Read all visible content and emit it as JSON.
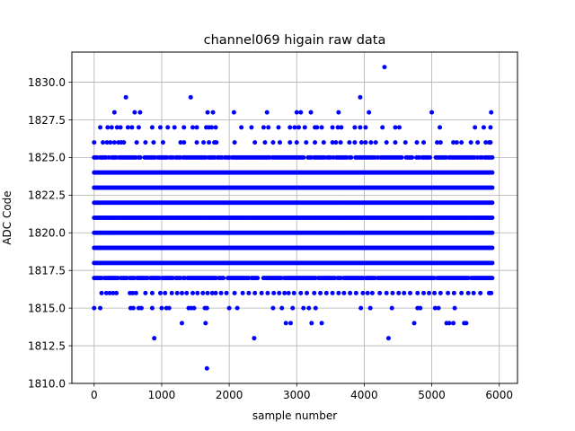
{
  "chart_data": {
    "type": "scatter",
    "title": "channel069 higain raw data",
    "xlabel": "sample number",
    "ylabel": "ADC Code",
    "xlim": [
      -330,
      6270
    ],
    "ylim": [
      1810.0,
      1832.0
    ],
    "x_ticks": [
      0,
      1000,
      2000,
      3000,
      4000,
      5000,
      6000
    ],
    "y_ticks": [
      1810.0,
      1812.5,
      1815.0,
      1817.5,
      1820.0,
      1822.5,
      1825.0,
      1827.5,
      1830.0
    ],
    "x_tick_labels": [
      "0",
      "1000",
      "2000",
      "3000",
      "4000",
      "5000",
      "6000"
    ],
    "y_tick_labels": [
      "1810.0",
      "1812.5",
      "1815.0",
      "1817.5",
      "1820.0",
      "1822.5",
      "1825.0",
      "1827.5",
      "1830.0"
    ],
    "grid": true,
    "marker_color": "#0000ff",
    "sample_range": [
      0,
      5900
    ],
    "dense_levels": [
      1818,
      1819,
      1820,
      1821,
      1822,
      1823,
      1824
    ],
    "medium_levels": [
      1817,
      1825
    ],
    "sparse_levels": [
      {
        "y": 1816,
        "x": [
          110,
          180,
          230,
          280,
          330,
          530,
          570,
          620,
          760,
          860,
          980,
          1050,
          1150,
          1230,
          1300,
          1370,
          1460,
          1530,
          1610,
          1680,
          1750,
          1800,
          1880,
          1960,
          2080,
          2200,
          2290,
          2380,
          2480,
          2570,
          2660,
          2740,
          2820,
          2880,
          2960,
          3060,
          3150,
          3260,
          3350,
          3440,
          3530,
          3620,
          3700,
          3790,
          3880,
          3980,
          4050,
          4120,
          4230,
          4330,
          4420,
          4510,
          4590,
          4680,
          4790,
          4880,
          4960,
          5040,
          5130,
          5240,
          5330,
          5440,
          5540,
          5620,
          5720,
          5850,
          5880
        ]
      },
      {
        "y": 1826,
        "x": [
          0,
          130,
          190,
          240,
          300,
          360,
          400,
          440,
          630,
          760,
          880,
          1020,
          1280,
          1330,
          1520,
          1620,
          1700,
          1780,
          1810,
          2080,
          2380,
          2530,
          2650,
          2750,
          2900,
          3000,
          3140,
          3270,
          3400,
          3530,
          3580,
          3650,
          3780,
          3860,
          3960,
          4020,
          4100,
          4170,
          4330,
          4460,
          4610,
          4780,
          4880,
          5080,
          5130,
          5320,
          5370,
          5440,
          5580,
          5680,
          5800,
          5850,
          5870
        ]
      },
      {
        "y": 1827,
        "x": [
          90,
          200,
          260,
          340,
          390,
          500,
          560,
          660,
          860,
          980,
          1090,
          1190,
          1330,
          1460,
          1520,
          1660,
          1700,
          1740,
          1800,
          2180,
          2330,
          2510,
          2580,
          2730,
          2900,
          2970,
          3030,
          3120,
          3270,
          3300,
          3370,
          3530,
          3610,
          3660,
          3860,
          3940,
          4020,
          4270,
          4460,
          4520,
          5120,
          5640,
          5770,
          5870
        ]
      },
      {
        "y": 1815,
        "x": [
          0,
          90,
          540,
          580,
          660,
          700,
          860,
          1000,
          1070,
          1110,
          1400,
          1440,
          1480,
          1640,
          1670,
          2000,
          2120,
          2650,
          2780,
          2940,
          3100,
          3180,
          3280,
          3950,
          4090,
          4410,
          4790,
          4830,
          5050,
          5100,
          5340
        ]
      },
      {
        "y": 1814,
        "x": [
          1300,
          1650,
          2840,
          2910,
          3220,
          3370,
          4740,
          5220,
          5260,
          5320,
          5480,
          5510
        ]
      },
      {
        "y": 1828,
        "x": [
          300,
          600,
          680,
          1680,
          1760,
          2070,
          2560,
          3000,
          3060,
          3210,
          3620,
          4070,
          5000,
          5880
        ]
      },
      {
        "y": 1829,
        "x": [
          470,
          1430,
          3940
        ]
      },
      {
        "y": 1813,
        "x": [
          890,
          2370,
          4360
        ]
      },
      {
        "y": 1831,
        "x": [
          4300
        ]
      },
      {
        "y": 1811,
        "x": [
          1670
        ]
      }
    ]
  }
}
